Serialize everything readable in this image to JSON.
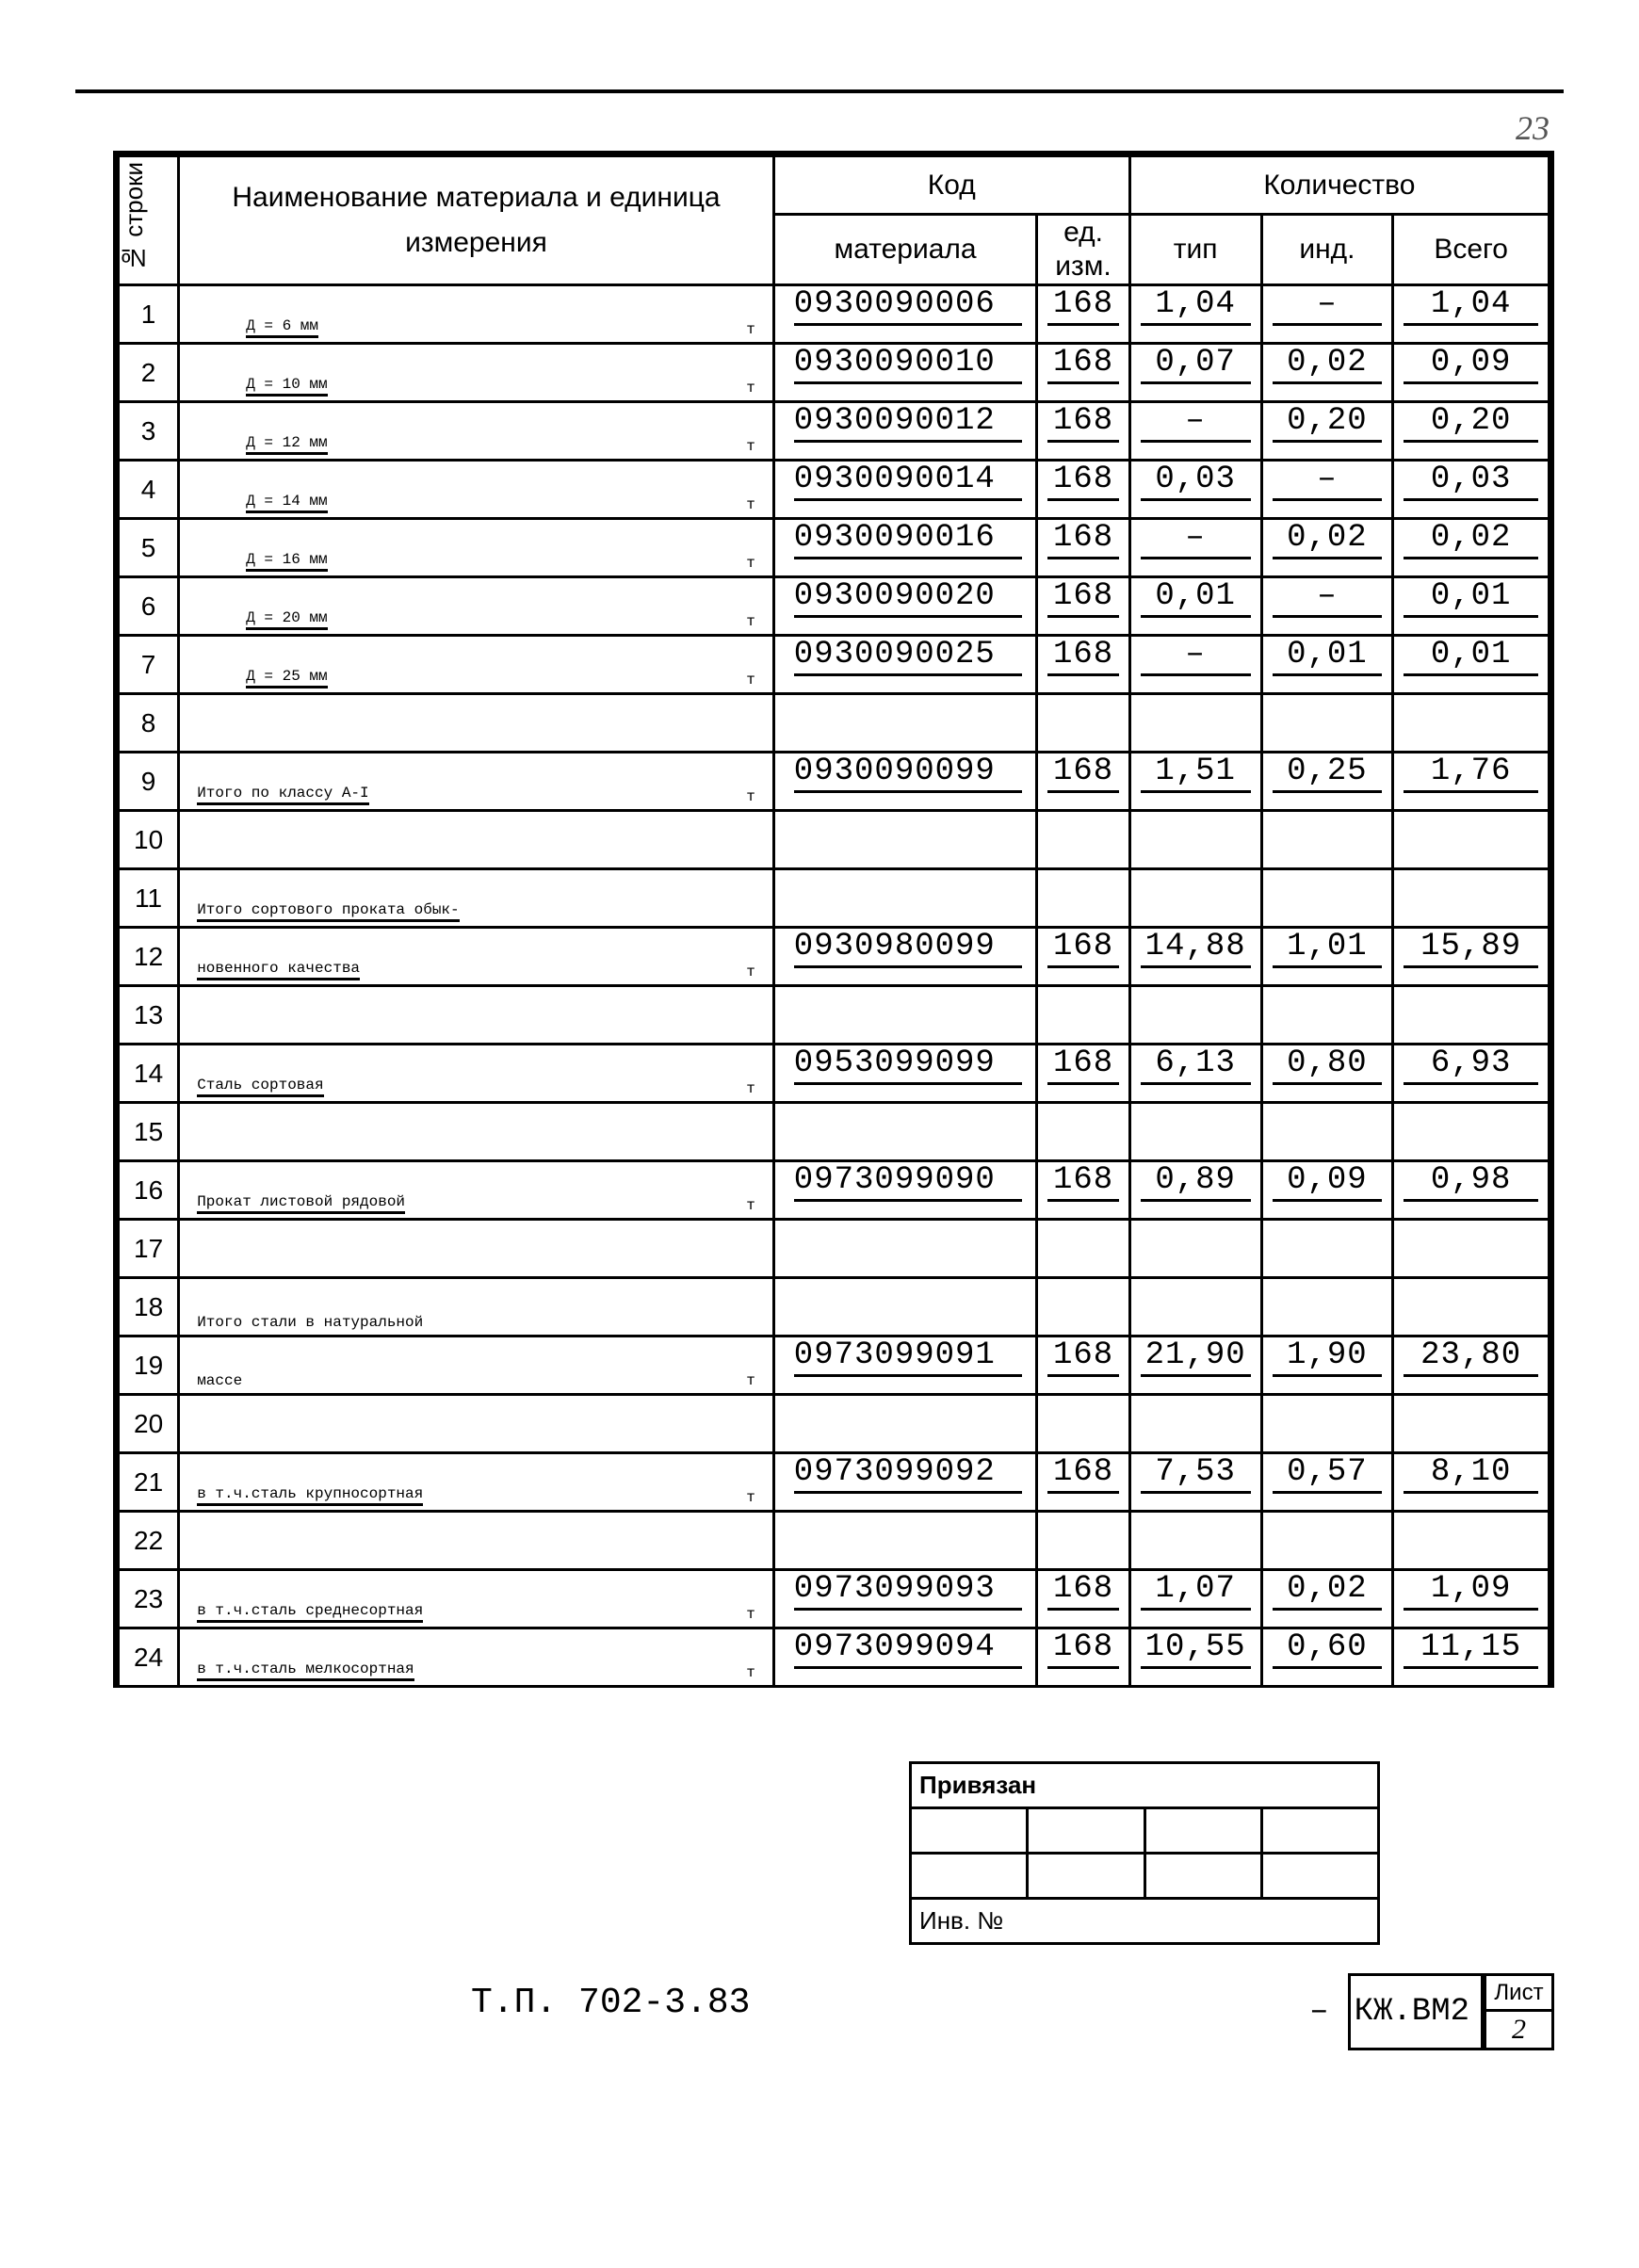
{
  "page_number_handwritten": "23",
  "doc_number": "Т.П. 702-3.83",
  "footer_code": "КЖ.ВМ2",
  "footer_list_label": "Лист",
  "footer_list_value": "2",
  "privyazan_label": "Привязан",
  "inv_label": "Инв. №",
  "headers": {
    "rownum": "№ строки",
    "name": "Наименование материала и единица измерения",
    "code_group": "Код",
    "code_material": "материала",
    "code_unit": "ед. изм.",
    "qty_group": "Количество",
    "qty_tip": "тип",
    "qty_ind": "инд.",
    "qty_total": "Всего"
  },
  "unit_suffix": "т",
  "rows": [
    {
      "n": "1",
      "name": "Д = 6 мм",
      "unit": "т",
      "code": "0930090006",
      "ed": "168",
      "tip": "1,04",
      "ind": "–",
      "tot": "1,04",
      "indent": true
    },
    {
      "n": "2",
      "name": "Д = 10 мм",
      "unit": "т",
      "code": "0930090010",
      "ed": "168",
      "tip": "0,07",
      "ind": "0,02",
      "tot": "0,09",
      "indent": true
    },
    {
      "n": "3",
      "name": "Д = 12 мм",
      "unit": "т",
      "code": "0930090012",
      "ed": "168",
      "tip": "–",
      "ind": "0,20",
      "tot": "0,20",
      "indent": true
    },
    {
      "n": "4",
      "name": "Д = 14 мм",
      "unit": "т",
      "code": "0930090014",
      "ed": "168",
      "tip": "0,03",
      "ind": "–",
      "tot": "0,03",
      "indent": true
    },
    {
      "n": "5",
      "name": "Д = 16 мм",
      "unit": "т",
      "code": "0930090016",
      "ed": "168",
      "tip": "–",
      "ind": "0,02",
      "tot": "0,02",
      "indent": true
    },
    {
      "n": "6",
      "name": "Д = 20 мм",
      "unit": "т",
      "code": "0930090020",
      "ed": "168",
      "tip": "0,01",
      "ind": "–",
      "tot": "0,01",
      "indent": true
    },
    {
      "n": "7",
      "name": "Д = 25 мм",
      "unit": "т",
      "code": "0930090025",
      "ed": "168",
      "tip": "–",
      "ind": "0,01",
      "tot": "0,01",
      "indent": true
    },
    {
      "n": "8"
    },
    {
      "n": "9",
      "name": "Итого по классу А-I",
      "unit": "т",
      "code": "0930090099",
      "ed": "168",
      "tip": "1,51",
      "ind": "0,25",
      "tot": "1,76"
    },
    {
      "n": "10"
    },
    {
      "n": "11",
      "name": "Итого сортового проката обык-",
      "nounder_right": true
    },
    {
      "n": "12",
      "name": "новенного качества",
      "unit": "т",
      "code": "0930980099",
      "ed": "168",
      "tip": "14,88",
      "ind": "1,01",
      "tot": "15,89"
    },
    {
      "n": "13"
    },
    {
      "n": "14",
      "name": "Сталь сортовая",
      "unit": "т",
      "code": "0953099099",
      "ed": "168",
      "tip": "6,13",
      "ind": "0,80",
      "tot": "6,93"
    },
    {
      "n": "15"
    },
    {
      "n": "16",
      "name": "Прокат листовой рядовой",
      "unit": "т",
      "code": "0973099090",
      "ed": "168",
      "tip": "0,89",
      "ind": "0,09",
      "tot": "0,98"
    },
    {
      "n": "17"
    },
    {
      "n": "18",
      "name": "Итого стали в натуральной",
      "nounder_right": true,
      "nounderline": true
    },
    {
      "n": "19",
      "name": "массе",
      "unit": "т",
      "code": "0973099091",
      "ed": "168",
      "tip": "21,90",
      "ind": "1,90",
      "tot": "23,80",
      "nounderline": true
    },
    {
      "n": "20"
    },
    {
      "n": "21",
      "name": "в т.ч.сталь крупносортная",
      "unit": "т",
      "code": "0973099092",
      "ed": "168",
      "tip": "7,53",
      "ind": "0,57",
      "tot": "8,10"
    },
    {
      "n": "22"
    },
    {
      "n": "23",
      "name": "в т.ч.сталь среднесортная",
      "unit": "т",
      "code": "0973099093",
      "ed": "168",
      "tip": "1,07",
      "ind": "0,02",
      "tot": "1,09"
    },
    {
      "n": "24",
      "name": "в т.ч.сталь мелкосортная",
      "unit": "т",
      "code": "0973099094",
      "ed": "168",
      "tip": "10,55",
      "ind": "0,60",
      "tot": "11,15"
    }
  ]
}
